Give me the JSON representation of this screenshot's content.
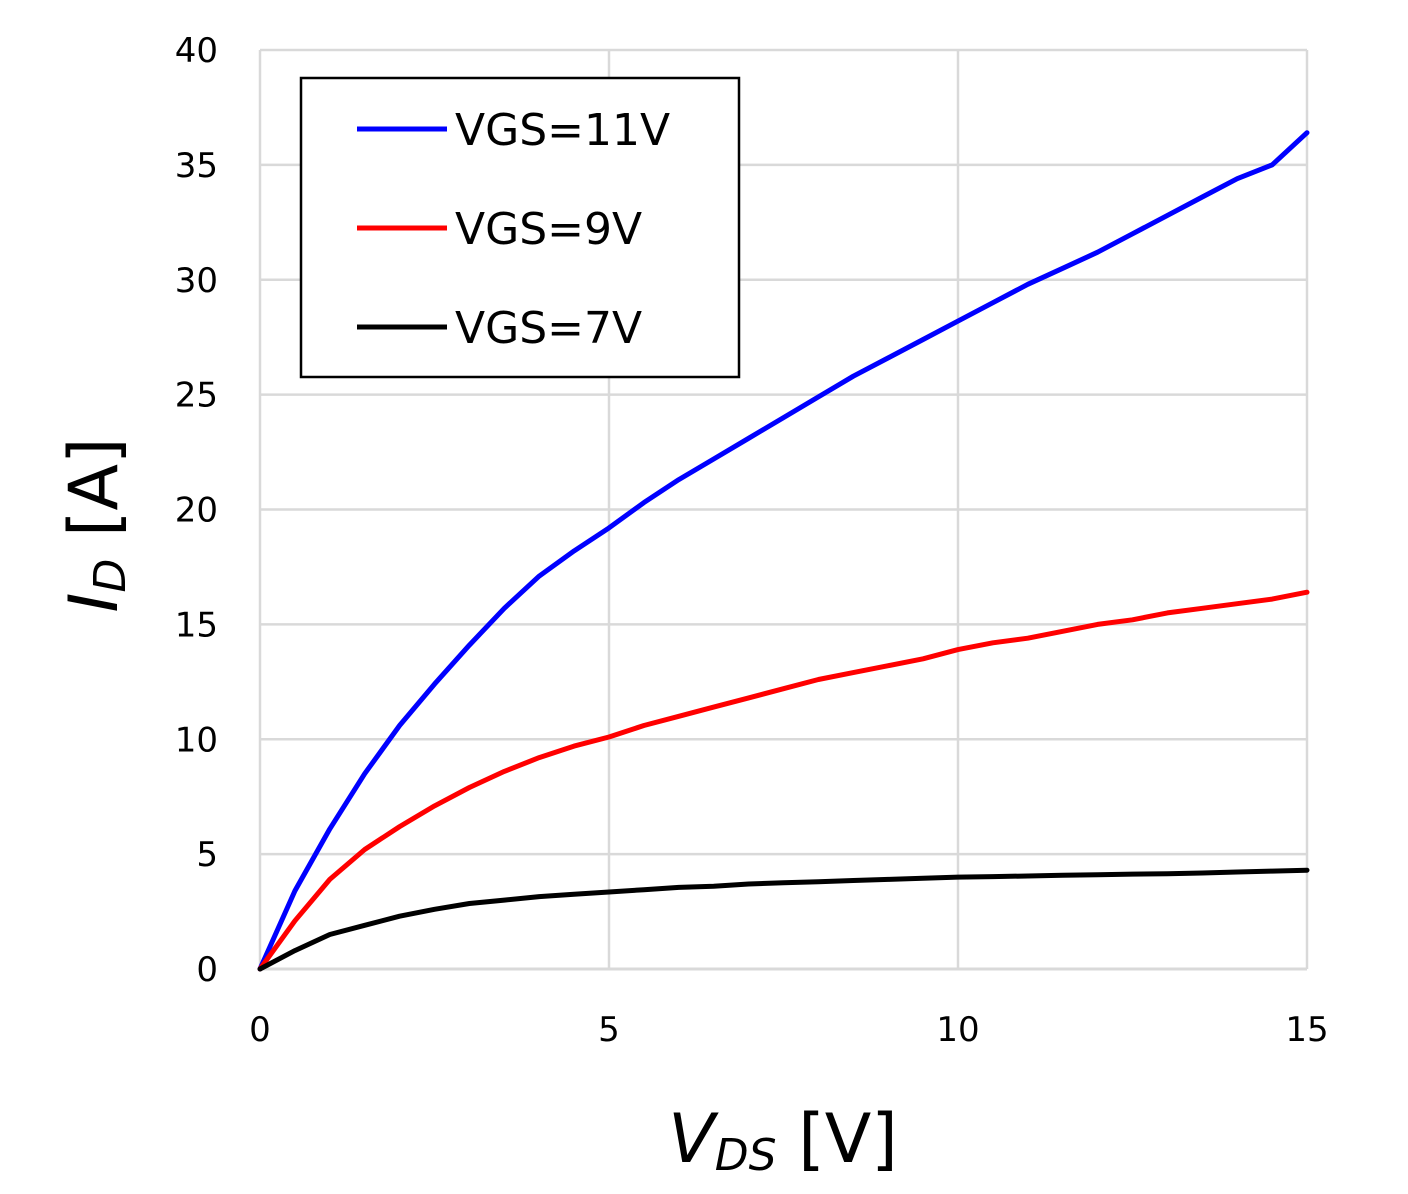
{
  "chart_data": {
    "type": "line",
    "xlabel": {
      "main": "V",
      "sub": "DS",
      "unit": "[V]"
    },
    "ylabel": {
      "main": "I",
      "sub": "D",
      "unit": "[A]"
    },
    "xlim": [
      0,
      15
    ],
    "ylim": [
      0,
      40
    ],
    "xticks": [
      "0",
      "5",
      "10",
      "15"
    ],
    "yticks": [
      "0",
      "5",
      "10",
      "15",
      "20",
      "25",
      "30",
      "35",
      "40"
    ],
    "grid": true,
    "legend_position": "top-left",
    "x": [
      0,
      0.5,
      1,
      1.5,
      2,
      2.5,
      3,
      3.5,
      4,
      4.5,
      5,
      5.5,
      6,
      6.5,
      7,
      7.5,
      8,
      8.5,
      9,
      9.5,
      10,
      10.5,
      11,
      11.5,
      12,
      12.5,
      13,
      13.5,
      14,
      14.5,
      15
    ],
    "series": [
      {
        "name": "VGS=11V",
        "color": "#0000ff",
        "values": [
          0,
          3.4,
          6.1,
          8.5,
          10.6,
          12.4,
          14.1,
          15.7,
          17.1,
          18.2,
          19.2,
          20.3,
          21.3,
          22.2,
          23.1,
          24.0,
          24.9,
          25.8,
          26.6,
          27.4,
          28.2,
          29.0,
          29.8,
          30.5,
          31.2,
          32.0,
          32.8,
          33.6,
          34.4,
          35.0,
          36.4
        ]
      },
      {
        "name": "VGS=9V",
        "color": "#ff0000",
        "values": [
          0,
          2.1,
          3.9,
          5.2,
          6.2,
          7.1,
          7.9,
          8.6,
          9.2,
          9.7,
          10.1,
          10.6,
          11.0,
          11.4,
          11.8,
          12.2,
          12.6,
          12.9,
          13.2,
          13.5,
          13.9,
          14.2,
          14.4,
          14.7,
          15.0,
          15.2,
          15.5,
          15.7,
          15.9,
          16.1,
          16.4
        ]
      },
      {
        "name": "VGS=7V",
        "color": "#000000",
        "values": [
          0,
          0.8,
          1.5,
          1.9,
          2.3,
          2.6,
          2.85,
          3.0,
          3.15,
          3.25,
          3.35,
          3.45,
          3.55,
          3.6,
          3.7,
          3.75,
          3.8,
          3.85,
          3.9,
          3.95,
          4.0,
          4.02,
          4.05,
          4.08,
          4.1,
          4.13,
          4.15,
          4.18,
          4.22,
          4.26,
          4.3
        ]
      }
    ]
  }
}
